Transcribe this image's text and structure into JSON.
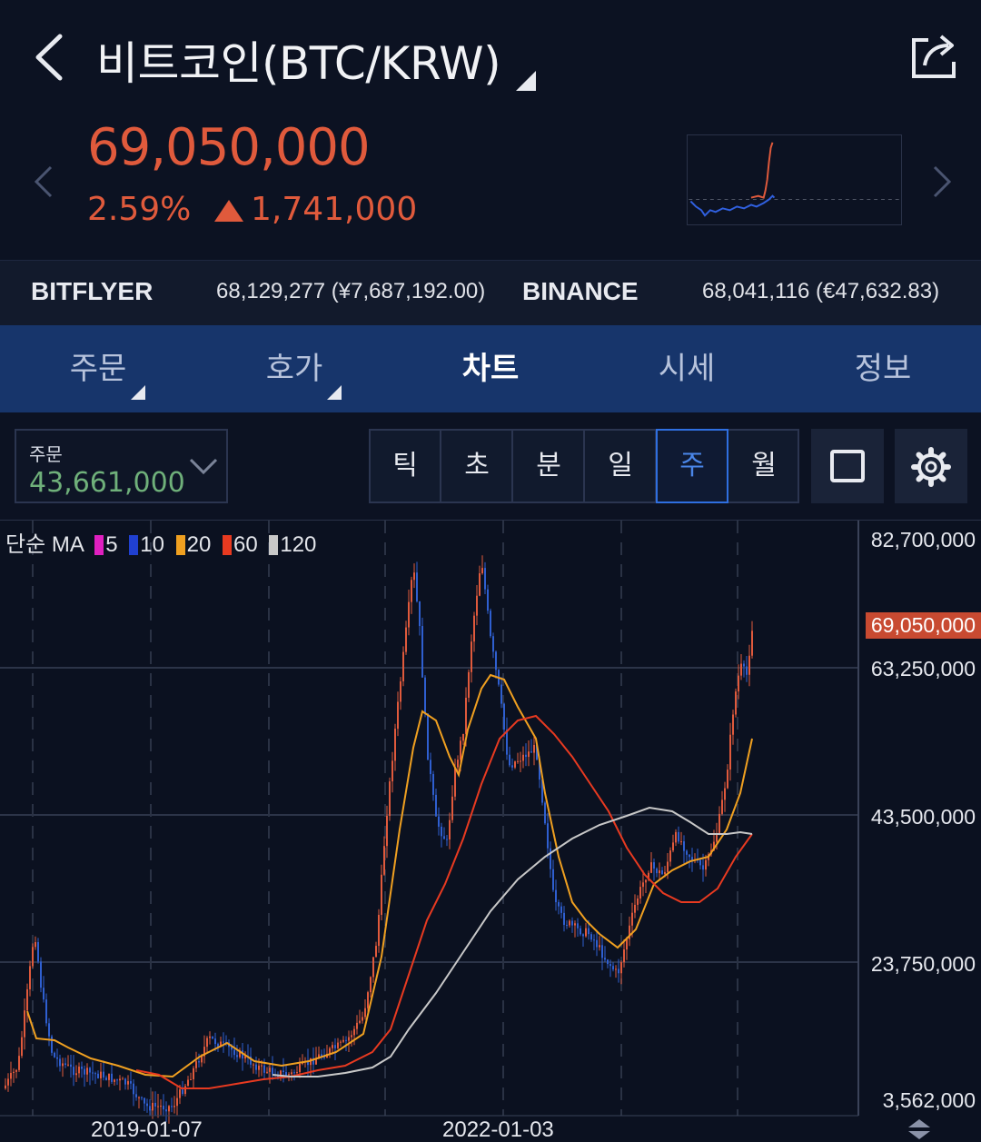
{
  "header": {
    "title": "비트코인(BTC/KRW)"
  },
  "price": {
    "current": "69,050,000",
    "change_pct": "2.59%",
    "change_abs": "1,741,000",
    "color": "#e05a3c"
  },
  "exchanges": [
    {
      "name": "BITFLYER",
      "value": "68,129,277 (¥7,687,192.00)"
    },
    {
      "name": "BINANCE",
      "value": "68,041,116 (€47,632.83)"
    }
  ],
  "tabs": [
    {
      "label": "주문"
    },
    {
      "label": "호가"
    },
    {
      "label": "차트"
    },
    {
      "label": "시세"
    },
    {
      "label": "정보"
    }
  ],
  "order": {
    "label": "주문",
    "value": "43,661,000"
  },
  "periods": [
    {
      "label": "틱"
    },
    {
      "label": "초"
    },
    {
      "label": "분"
    },
    {
      "label": "일"
    },
    {
      "label": "주"
    },
    {
      "label": "월"
    }
  ],
  "legend": {
    "prefix": "단순 MA",
    "items": [
      {
        "label": "5",
        "color": "#e020c0"
      },
      {
        "label": "10",
        "color": "#2040d0"
      },
      {
        "label": "20",
        "color": "#f0a020"
      },
      {
        "label": "60",
        "color": "#e83a20"
      },
      {
        "label": "120",
        "color": "#c8c8c8"
      }
    ]
  },
  "y_axis": {
    "top": "82,700,000",
    "current": "69,050,000",
    "l2": "63,250,000",
    "l3": "43,500,000",
    "l4": "23,750,000",
    "bottom": "3,562,000"
  },
  "x_axis": {
    "l1": "2019-01-07",
    "l2": "2022-01-03"
  },
  "colors": {
    "up": "#e05a3c",
    "down": "#2f5fd0",
    "tab_bar": "#17356b",
    "accent": "#2f6fe0"
  }
}
